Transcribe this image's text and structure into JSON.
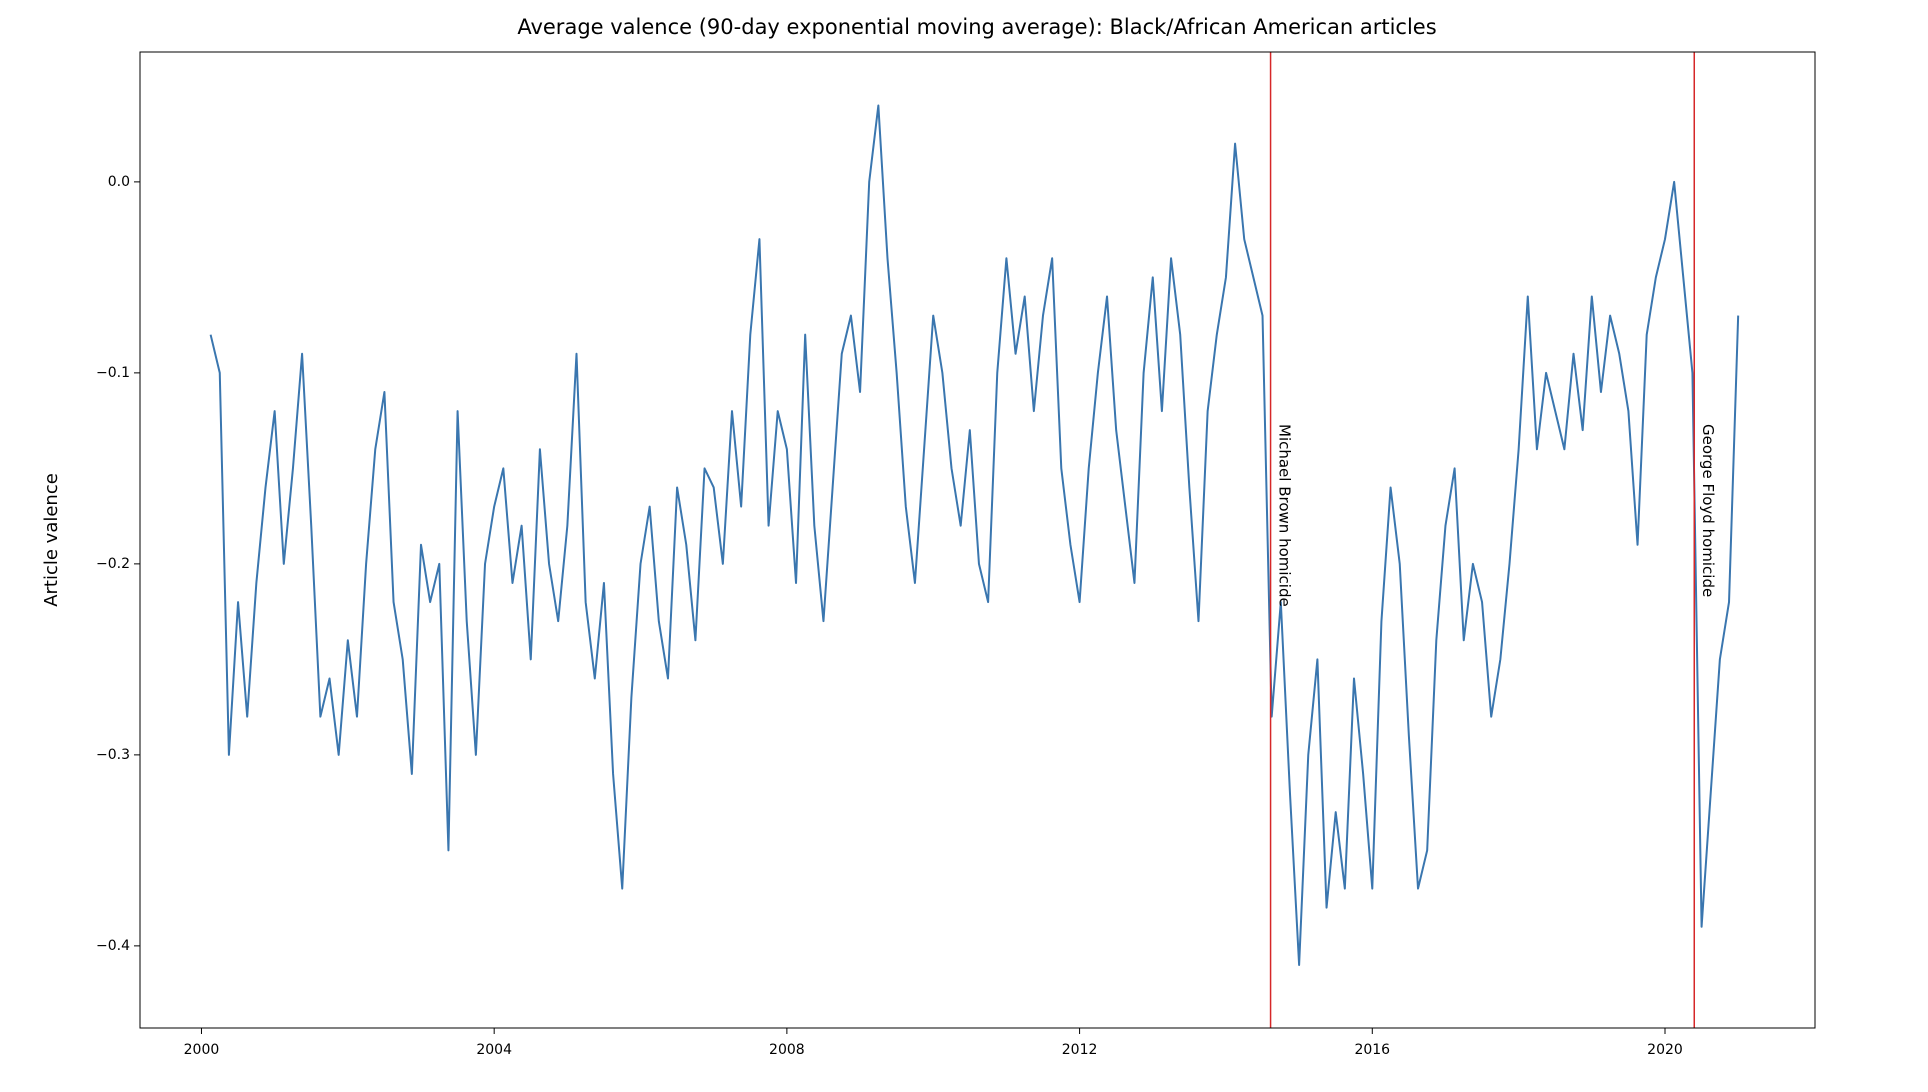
{
  "chart_data": {
    "type": "line",
    "title": "Average valence (90-day exponential moving average): Black/African American articles",
    "y_label": "Article valence",
    "x": [
      2000.125,
      2000.25,
      2000.375,
      2000.5,
      2000.625,
      2000.75,
      2000.875,
      2001.0,
      2001.125,
      2001.25,
      2001.375,
      2001.5,
      2001.625,
      2001.75,
      2001.875,
      2002.0,
      2002.125,
      2002.25,
      2002.375,
      2002.5,
      2002.625,
      2002.75,
      2002.875,
      2003.0,
      2003.125,
      2003.25,
      2003.375,
      2003.5,
      2003.625,
      2003.75,
      2003.875,
      2004.0,
      2004.125,
      2004.25,
      2004.375,
      2004.5,
      2004.625,
      2004.75,
      2004.875,
      2005.0,
      2005.125,
      2005.25,
      2005.375,
      2005.5,
      2005.625,
      2005.75,
      2005.875,
      2006.0,
      2006.125,
      2006.25,
      2006.375,
      2006.5,
      2006.625,
      2006.75,
      2006.875,
      2007.0,
      2007.125,
      2007.25,
      2007.375,
      2007.5,
      2007.625,
      2007.75,
      2007.875,
      2008.0,
      2008.125,
      2008.25,
      2008.375,
      2008.5,
      2008.625,
      2008.75,
      2008.875,
      2009.0,
      2009.125,
      2009.25,
      2009.375,
      2009.5,
      2009.625,
      2009.75,
      2009.875,
      2010.0,
      2010.125,
      2010.25,
      2010.375,
      2010.5,
      2010.625,
      2010.75,
      2010.875,
      2011.0,
      2011.125,
      2011.25,
      2011.375,
      2011.5,
      2011.625,
      2011.75,
      2011.875,
      2012.0,
      2012.125,
      2012.25,
      2012.375,
      2012.5,
      2012.625,
      2012.75,
      2012.875,
      2013.0,
      2013.125,
      2013.25,
      2013.375,
      2013.5,
      2013.625,
      2013.75,
      2013.875,
      2014.0,
      2014.125,
      2014.25,
      2014.375,
      2014.5,
      2014.625,
      2014.75,
      2014.875,
      2015.0,
      2015.125,
      2015.25,
      2015.375,
      2015.5,
      2015.625,
      2015.75,
      2015.875,
      2016.0,
      2016.125,
      2016.25,
      2016.375,
      2016.5,
      2016.625,
      2016.75,
      2016.875,
      2017.0,
      2017.125,
      2017.25,
      2017.375,
      2017.5,
      2017.625,
      2017.75,
      2017.875,
      2018.0,
      2018.125,
      2018.25,
      2018.375,
      2018.5,
      2018.625,
      2018.75,
      2018.875,
      2019.0,
      2019.125,
      2019.25,
      2019.375,
      2019.5,
      2019.625,
      2019.75,
      2019.875,
      2020.0,
      2020.125,
      2020.25,
      2020.375,
      2020.5,
      2020.625,
      2020.75,
      2020.875,
      2021.0
    ],
    "series": [
      {
        "name": "Article valence",
        "color": "#3a76af",
        "values": [
          -0.08,
          -0.1,
          -0.3,
          -0.22,
          -0.28,
          -0.21,
          -0.16,
          -0.12,
          -0.2,
          -0.15,
          -0.09,
          -0.18,
          -0.28,
          -0.26,
          -0.3,
          -0.24,
          -0.28,
          -0.2,
          -0.14,
          -0.11,
          -0.22,
          -0.25,
          -0.31,
          -0.19,
          -0.22,
          -0.2,
          -0.35,
          -0.12,
          -0.23,
          -0.3,
          -0.2,
          -0.17,
          -0.15,
          -0.21,
          -0.18,
          -0.25,
          -0.14,
          -0.2,
          -0.23,
          -0.18,
          -0.09,
          -0.22,
          -0.26,
          -0.21,
          -0.31,
          -0.37,
          -0.27,
          -0.2,
          -0.17,
          -0.23,
          -0.26,
          -0.16,
          -0.19,
          -0.24,
          -0.15,
          -0.16,
          -0.2,
          -0.12,
          -0.17,
          -0.08,
          -0.03,
          -0.18,
          -0.12,
          -0.14,
          -0.21,
          -0.08,
          -0.18,
          -0.23,
          -0.16,
          -0.09,
          -0.07,
          -0.11,
          0.0,
          0.04,
          -0.04,
          -0.1,
          -0.17,
          -0.21,
          -0.14,
          -0.07,
          -0.1,
          -0.15,
          -0.18,
          -0.13,
          -0.2,
          -0.22,
          -0.1,
          -0.04,
          -0.09,
          -0.06,
          -0.12,
          -0.07,
          -0.04,
          -0.15,
          -0.19,
          -0.22,
          -0.15,
          -0.1,
          -0.06,
          -0.13,
          -0.17,
          -0.21,
          -0.1,
          -0.05,
          -0.12,
          -0.04,
          -0.08,
          -0.16,
          -0.23,
          -0.12,
          -0.08,
          -0.05,
          0.02,
          -0.03,
          -0.05,
          -0.07,
          -0.28,
          -0.22,
          -0.32,
          -0.41,
          -0.3,
          -0.25,
          -0.38,
          -0.33,
          -0.37,
          -0.26,
          -0.31,
          -0.37,
          -0.23,
          -0.16,
          -0.2,
          -0.29,
          -0.37,
          -0.35,
          -0.24,
          -0.18,
          -0.15,
          -0.24,
          -0.2,
          -0.22,
          -0.28,
          -0.25,
          -0.2,
          -0.14,
          -0.06,
          -0.14,
          -0.1,
          -0.12,
          -0.14,
          -0.09,
          -0.13,
          -0.06,
          -0.11,
          -0.07,
          -0.09,
          -0.12,
          -0.19,
          -0.08,
          -0.05,
          -0.03,
          0.0,
          -0.05,
          -0.1,
          -0.39,
          -0.32,
          -0.25,
          -0.22,
          -0.07
        ]
      }
    ],
    "annotations": [
      {
        "text": "Michael Brown homicide",
        "x": 2014.61,
        "color": "#d62728"
      },
      {
        "text": "George Floyd homicide",
        "x": 2020.4,
        "color": "#d62728"
      }
    ],
    "xlim": [
      1999.16,
      2022.05
    ],
    "ylim": [
      -0.443,
      0.068
    ],
    "xticks": [
      2000,
      2004,
      2008,
      2012,
      2016,
      2020
    ],
    "yticks": [
      {
        "value": -0.4,
        "label": "−0.4"
      },
      {
        "value": -0.3,
        "label": "−0.3"
      },
      {
        "value": -0.2,
        "label": "−0.2"
      },
      {
        "value": -0.1,
        "label": "−0.1"
      },
      {
        "value": 0,
        "label": "0.0"
      }
    ],
    "grid": false
  }
}
